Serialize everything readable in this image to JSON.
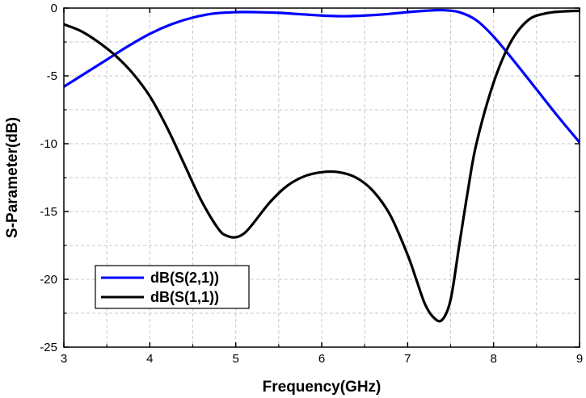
{
  "chart_data": {
    "type": "line",
    "title": "",
    "xlabel": "Frequency(GHz)",
    "ylabel": "S-Parameter(dB)",
    "xlim": [
      3,
      9
    ],
    "ylim": [
      -25,
      0
    ],
    "xticks": [
      3,
      4,
      5,
      6,
      7,
      8,
      9
    ],
    "yticks": [
      0,
      -5,
      -10,
      -15,
      -20,
      -25
    ],
    "xtick_labels": [
      "3",
      "4",
      "5",
      "6",
      "7",
      "8",
      "9"
    ],
    "ytick_labels": [
      "0",
      "-5",
      "-10",
      "-15",
      "-20",
      "-25"
    ],
    "grid": true,
    "legend_position": "lower-left",
    "series": [
      {
        "name": "dB(S(2,1))",
        "color": "#0000ff",
        "x": [
          3.0,
          3.25,
          3.5,
          3.75,
          4.0,
          4.25,
          4.5,
          4.75,
          5.0,
          5.25,
          5.5,
          5.75,
          6.0,
          6.25,
          6.5,
          6.75,
          7.0,
          7.2,
          7.4,
          7.6,
          7.8,
          8.0,
          8.25,
          8.5,
          8.75,
          9.0
        ],
        "y": [
          -5.8,
          -4.8,
          -3.8,
          -2.8,
          -1.9,
          -1.2,
          -0.7,
          -0.4,
          -0.3,
          -0.3,
          -0.35,
          -0.45,
          -0.55,
          -0.6,
          -0.55,
          -0.45,
          -0.3,
          -0.2,
          -0.15,
          -0.3,
          -0.9,
          -2.1,
          -4.0,
          -6.0,
          -8.0,
          -9.9
        ]
      },
      {
        "name": "dB(S(1,1))",
        "color": "#000000",
        "x": [
          3.0,
          3.2,
          3.4,
          3.6,
          3.8,
          4.0,
          4.2,
          4.4,
          4.6,
          4.8,
          4.9,
          5.0,
          5.1,
          5.2,
          5.4,
          5.6,
          5.8,
          6.0,
          6.2,
          6.4,
          6.6,
          6.8,
          7.0,
          7.1,
          7.2,
          7.3,
          7.4,
          7.5,
          7.6,
          7.7,
          7.8,
          8.0,
          8.2,
          8.4,
          8.6,
          8.8,
          9.0
        ],
        "y": [
          -1.2,
          -1.7,
          -2.5,
          -3.5,
          -4.8,
          -6.5,
          -8.8,
          -11.5,
          -14.2,
          -16.3,
          -16.8,
          -16.9,
          -16.6,
          -15.9,
          -14.3,
          -13.1,
          -12.4,
          -12.1,
          -12.1,
          -12.5,
          -13.5,
          -15.3,
          -18.2,
          -20.0,
          -21.8,
          -22.8,
          -23.0,
          -21.5,
          -17.5,
          -13.5,
          -10.0,
          -5.5,
          -2.5,
          -0.9,
          -0.4,
          -0.25,
          -0.2
        ]
      }
    ]
  }
}
